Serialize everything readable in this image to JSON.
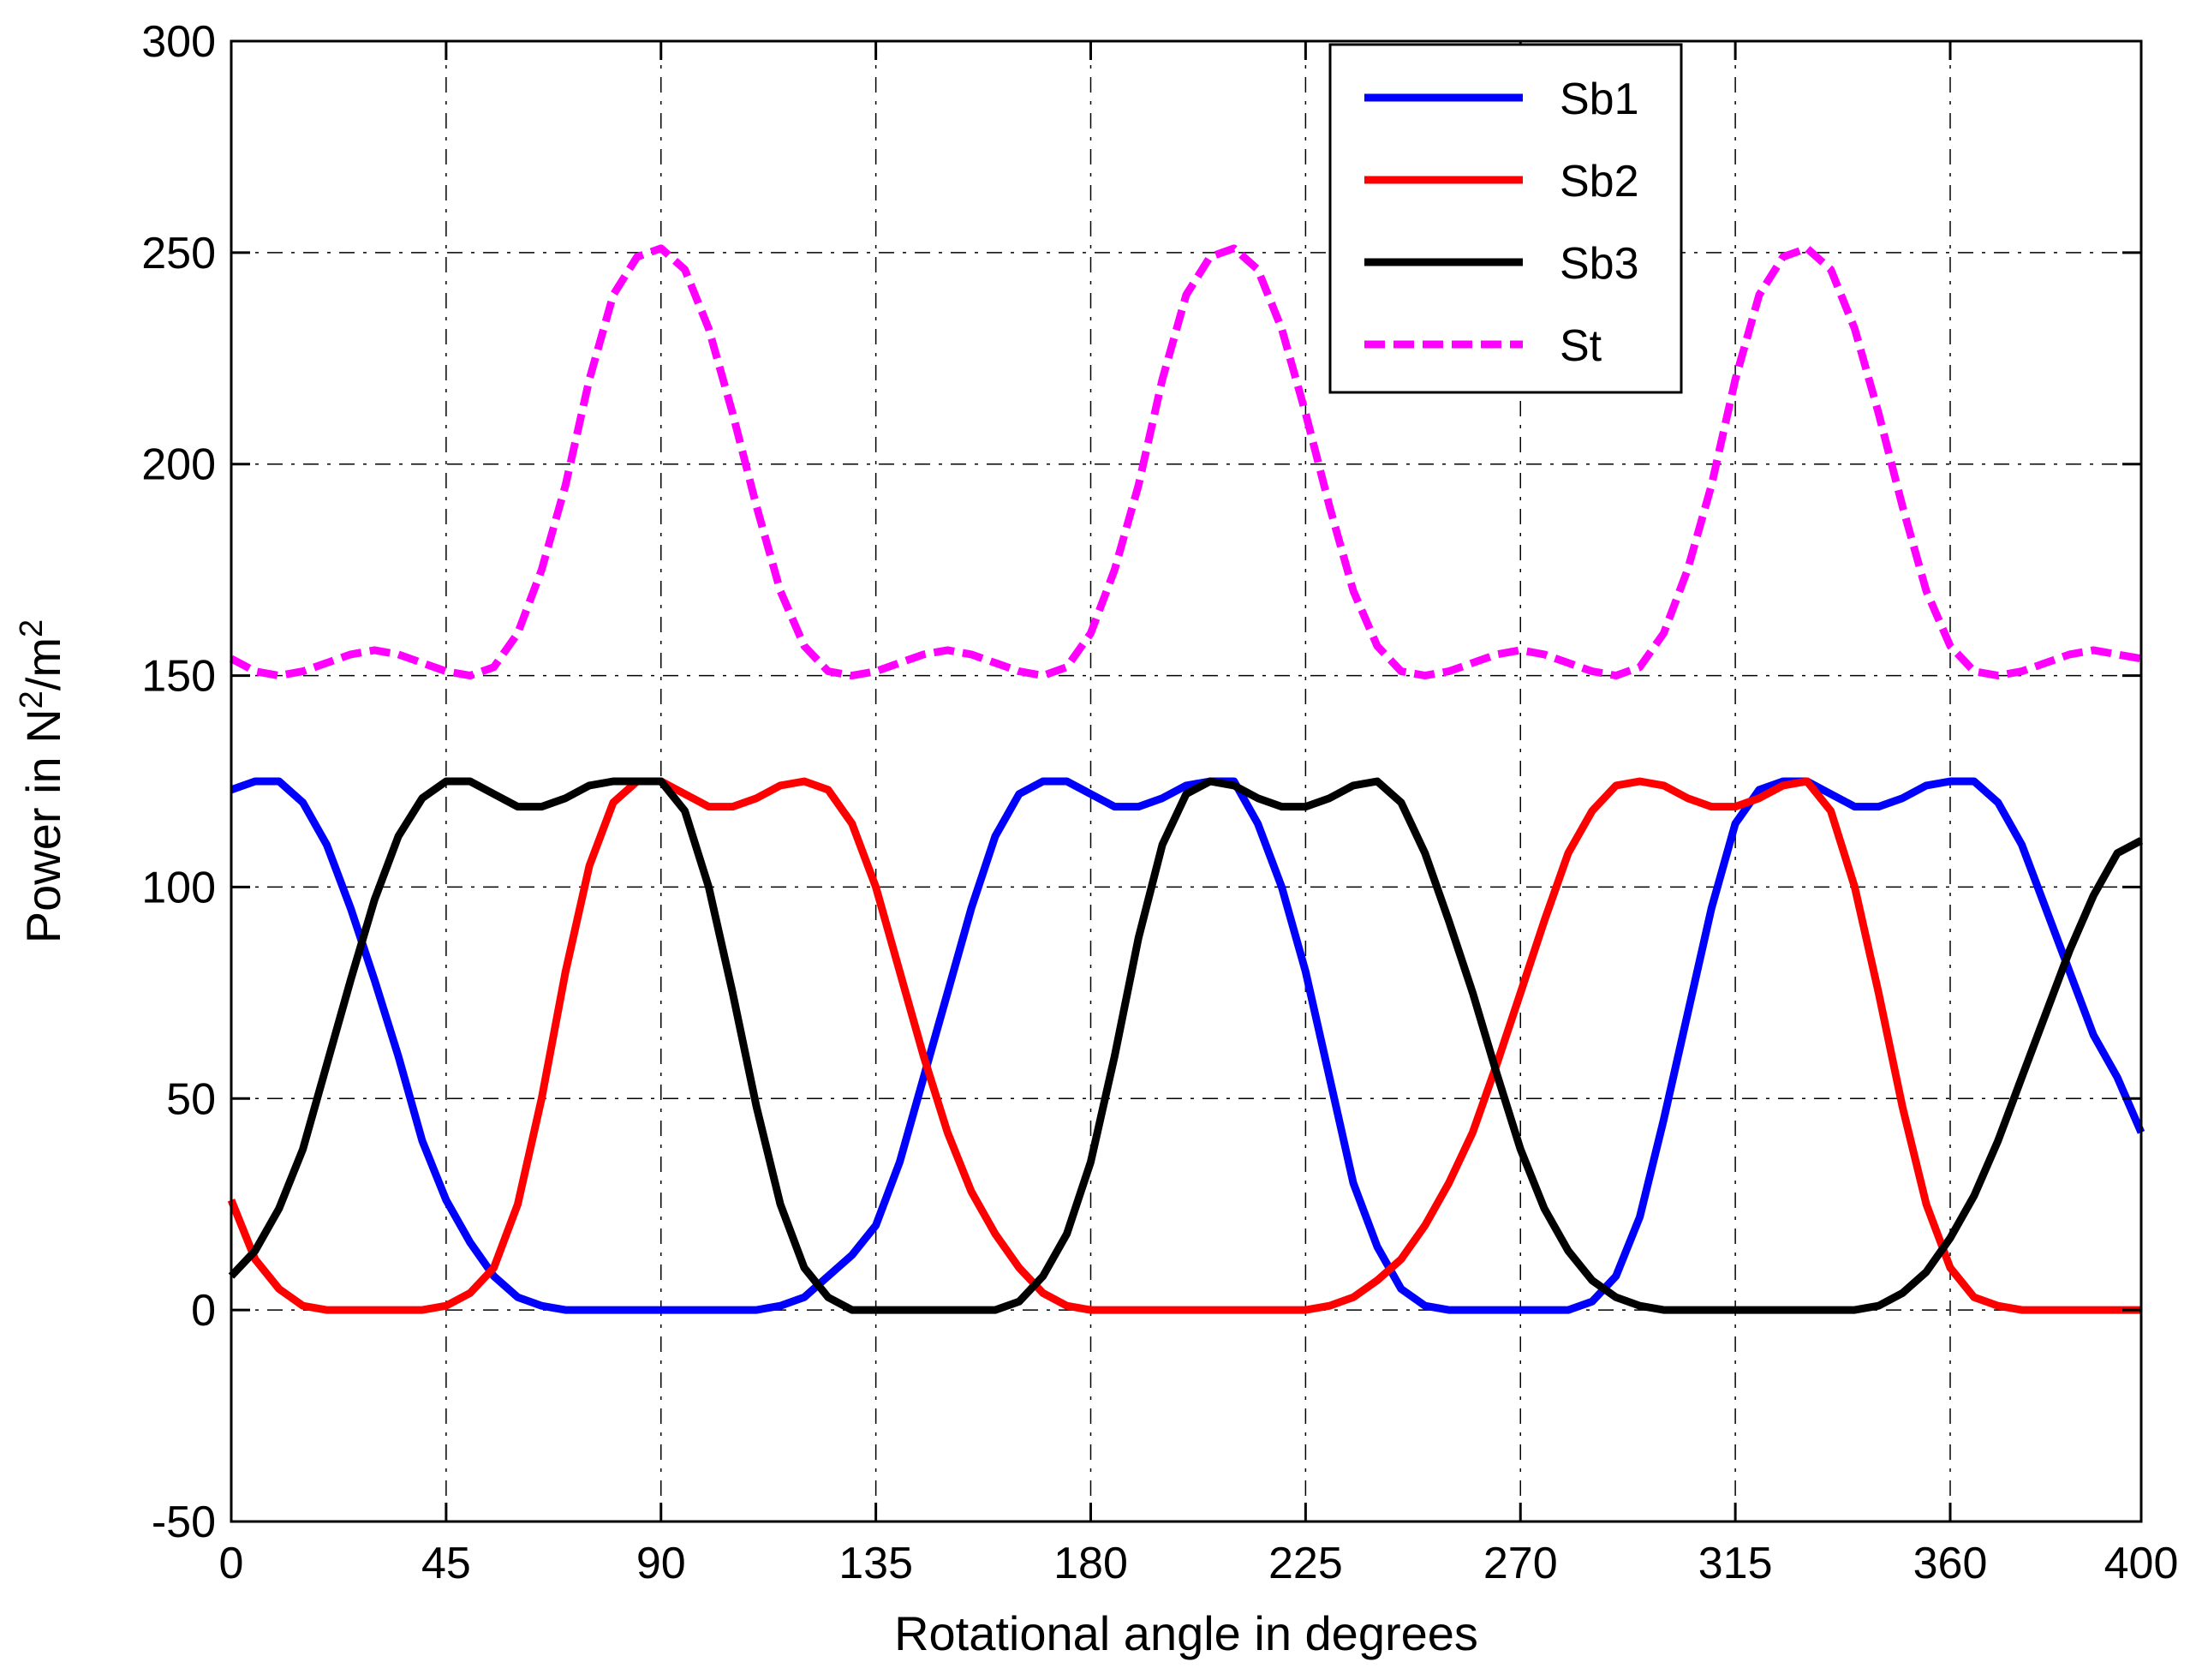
{
  "chart_data": {
    "type": "line",
    "title": "",
    "xlabel": "Rotational angle in degrees",
    "ylabel_parts": [
      "Power in N",
      "2",
      "/m",
      "2"
    ],
    "xlim": [
      0,
      400
    ],
    "ylim": [
      -50,
      300
    ],
    "xticks": [
      0,
      45,
      90,
      135,
      180,
      225,
      270,
      315,
      360,
      400
    ],
    "yticks": [
      -50,
      0,
      50,
      100,
      150,
      200,
      250,
      300
    ],
    "xtick_labels": [
      "0",
      "45",
      "90",
      "135",
      "180",
      "225",
      "270",
      "315",
      "360",
      "400"
    ],
    "ytick_labels": [
      "-50",
      "0",
      "50",
      "100",
      "150",
      "200",
      "250",
      "300"
    ],
    "grid": true,
    "legend_position": "top-right",
    "series": [
      {
        "name": "Sb1",
        "color": "#0000ff",
        "dash": "solid",
        "x": [
          0,
          5,
          10,
          15,
          20,
          25,
          30,
          35,
          40,
          45,
          50,
          55,
          60,
          65,
          70,
          75,
          80,
          85,
          90,
          95,
          100,
          105,
          110,
          115,
          120,
          125,
          130,
          135,
          140,
          145,
          150,
          155,
          160,
          165,
          170,
          175,
          180,
          185,
          190,
          195,
          200,
          205,
          210,
          215,
          220,
          225,
          230,
          235,
          240,
          245,
          250,
          255,
          260,
          265,
          270,
          275,
          280,
          285,
          290,
          295,
          300,
          305,
          310,
          315,
          320,
          325,
          330,
          335,
          340,
          345,
          350,
          355,
          360,
          365,
          370,
          375,
          380,
          385,
          390,
          395,
          400
        ],
        "values": [
          123,
          125,
          125,
          120,
          110,
          95,
          78,
          60,
          40,
          26,
          16,
          8,
          3,
          1,
          0,
          0,
          0,
          0,
          0,
          0,
          0,
          0,
          0,
          1,
          3,
          8,
          13,
          20,
          35,
          55,
          75,
          95,
          112,
          122,
          125,
          125,
          122,
          119,
          119,
          121,
          124,
          125,
          125,
          115,
          100,
          80,
          55,
          30,
          15,
          5,
          1,
          0,
          0,
          0,
          0,
          0,
          0,
          2,
          8,
          22,
          45,
          70,
          95,
          115,
          123,
          125,
          125,
          122,
          119,
          119,
          121,
          124,
          125,
          125,
          120,
          110,
          95,
          80,
          65,
          55,
          42
        ]
      },
      {
        "name": "Sb2",
        "color": "#ff0000",
        "dash": "solid",
        "x": [
          0,
          5,
          10,
          15,
          20,
          25,
          30,
          35,
          40,
          45,
          50,
          55,
          60,
          65,
          70,
          75,
          80,
          85,
          90,
          95,
          100,
          105,
          110,
          115,
          120,
          125,
          130,
          135,
          140,
          145,
          150,
          155,
          160,
          165,
          170,
          175,
          180,
          185,
          190,
          195,
          200,
          205,
          210,
          215,
          220,
          225,
          230,
          235,
          240,
          245,
          250,
          255,
          260,
          265,
          270,
          275,
          280,
          285,
          290,
          295,
          300,
          305,
          310,
          315,
          320,
          325,
          330,
          335,
          340,
          345,
          350,
          355,
          360,
          365,
          370,
          375,
          380,
          385,
          390,
          395,
          400
        ],
        "values": [
          26,
          12,
          5,
          1,
          0,
          0,
          0,
          0,
          0,
          1,
          4,
          10,
          25,
          50,
          80,
          105,
          120,
          125,
          125,
          122,
          119,
          119,
          121,
          124,
          125,
          123,
          115,
          100,
          80,
          60,
          42,
          28,
          18,
          10,
          4,
          1,
          0,
          0,
          0,
          0,
          0,
          0,
          0,
          0,
          0,
          0,
          1,
          3,
          7,
          12,
          20,
          30,
          42,
          58,
          75,
          92,
          108,
          118,
          124,
          125,
          124,
          121,
          119,
          119,
          121,
          124,
          125,
          118,
          100,
          75,
          48,
          25,
          10,
          3,
          1,
          0,
          0,
          0,
          0,
          0,
          0
        ]
      },
      {
        "name": "Sb3",
        "color": "#000000",
        "dash": "solid",
        "x": [
          0,
          5,
          10,
          15,
          20,
          25,
          30,
          35,
          40,
          45,
          50,
          55,
          60,
          65,
          70,
          75,
          80,
          85,
          90,
          95,
          100,
          105,
          110,
          115,
          120,
          125,
          130,
          135,
          140,
          145,
          150,
          155,
          160,
          165,
          170,
          175,
          180,
          185,
          190,
          195,
          200,
          205,
          210,
          215,
          220,
          225,
          230,
          235,
          240,
          245,
          250,
          255,
          260,
          265,
          270,
          275,
          280,
          285,
          290,
          295,
          300,
          305,
          310,
          315,
          320,
          325,
          330,
          335,
          340,
          345,
          350,
          355,
          360,
          365,
          370,
          375,
          380,
          385,
          390,
          395,
          400
        ],
        "values": [
          8,
          14,
          24,
          38,
          58,
          78,
          97,
          112,
          121,
          125,
          125,
          122,
          119,
          119,
          121,
          124,
          125,
          125,
          125,
          118,
          100,
          75,
          48,
          25,
          10,
          3,
          0,
          0,
          0,
          0,
          0,
          0,
          0,
          2,
          8,
          18,
          35,
          60,
          88,
          110,
          122,
          125,
          124,
          121,
          119,
          119,
          121,
          124,
          125,
          120,
          108,
          92,
          75,
          56,
          38,
          24,
          14,
          7,
          3,
          1,
          0,
          0,
          0,
          0,
          0,
          0,
          0,
          0,
          0,
          1,
          4,
          9,
          17,
          27,
          40,
          55,
          70,
          85,
          98,
          108,
          111
        ]
      },
      {
        "name": "St",
        "color": "#ff00ff",
        "dash": "dashed",
        "x": [
          0,
          5,
          10,
          15,
          20,
          25,
          30,
          35,
          40,
          45,
          50,
          55,
          60,
          65,
          70,
          75,
          80,
          85,
          90,
          95,
          100,
          105,
          110,
          115,
          120,
          125,
          130,
          135,
          140,
          145,
          150,
          155,
          160,
          165,
          170,
          175,
          180,
          185,
          190,
          195,
          200,
          205,
          210,
          215,
          220,
          225,
          230,
          235,
          240,
          245,
          250,
          255,
          260,
          265,
          270,
          275,
          280,
          285,
          290,
          295,
          300,
          305,
          310,
          315,
          320,
          325,
          330,
          335,
          340,
          345,
          350,
          355,
          360,
          365,
          370,
          375,
          380,
          385,
          390,
          395,
          400
        ],
        "values": [
          154,
          151,
          150,
          151,
          153,
          155,
          156,
          155,
          153,
          151,
          150,
          152,
          160,
          175,
          195,
          220,
          240,
          249,
          251,
          246,
          232,
          212,
          190,
          170,
          157,
          151,
          150,
          151,
          153,
          155,
          156,
          155,
          153,
          151,
          150,
          152,
          160,
          175,
          195,
          220,
          240,
          249,
          251,
          246,
          232,
          212,
          190,
          170,
          157,
          151,
          150,
          151,
          153,
          155,
          156,
          155,
          153,
          151,
          150,
          152,
          160,
          175,
          195,
          220,
          240,
          249,
          251,
          246,
          232,
          212,
          190,
          170,
          157,
          151,
          150,
          151,
          153,
          155,
          156,
          155,
          154
        ]
      }
    ]
  }
}
